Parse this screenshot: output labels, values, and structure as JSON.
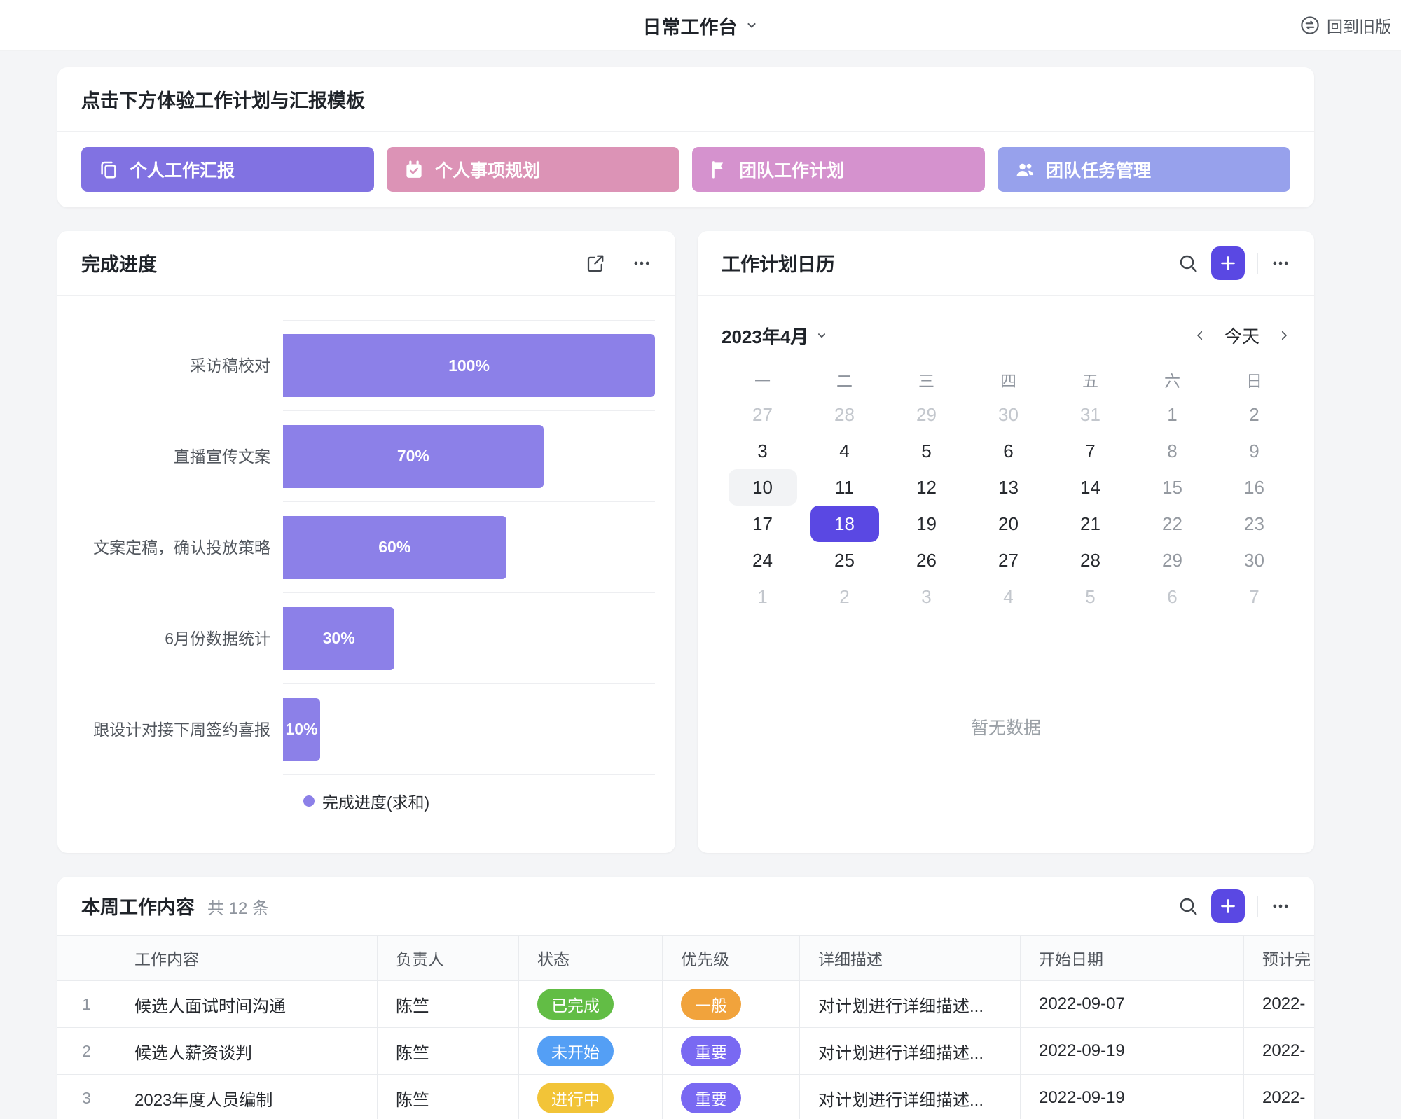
{
  "theme": {
    "accent": "#5a48e3"
  },
  "header": {
    "title": "日常工作台",
    "back_label": "回到旧版"
  },
  "templates": {
    "heading": "点击下方体验工作计划与汇报模板",
    "buttons": [
      {
        "label": "个人工作汇报",
        "color": "#8172e2",
        "icon": "copy-icon"
      },
      {
        "label": "个人事项规划",
        "color": "#dc93b6",
        "icon": "calendar-check-icon"
      },
      {
        "label": "团队工作计划",
        "color": "#d592ce",
        "icon": "flag-icon"
      },
      {
        "label": "团队任务管理",
        "color": "#97a1ec",
        "icon": "people-icon"
      }
    ]
  },
  "progress_card": {
    "title": "完成进度"
  },
  "chart_data": {
    "type": "bar",
    "orientation": "horizontal",
    "title": "完成进度",
    "categories": [
      "采访稿校对",
      "直播宣传文案",
      "文案定稿，确认投放策略",
      "6月份数据统计",
      "跟设计对接下周签约喜报"
    ],
    "values": [
      100,
      70,
      60,
      30,
      10
    ],
    "value_labels": [
      "100%",
      "70%",
      "60%",
      "30%",
      "10%"
    ],
    "xlim": [
      0,
      100
    ],
    "bar_color": "#8c80e8",
    "grid": "category-separators",
    "legend": [
      "完成进度(求和)"
    ],
    "legend_position": "bottom"
  },
  "calendar_card": {
    "title": "工作计划日历",
    "month_label": "2023年4月",
    "today_label": "今天",
    "weekdays": [
      "一",
      "二",
      "三",
      "四",
      "五",
      "六",
      "日"
    ],
    "empty_text": "暂无数据",
    "days": [
      {
        "d": "27",
        "k": "muted"
      },
      {
        "d": "28",
        "k": "muted"
      },
      {
        "d": "29",
        "k": "muted"
      },
      {
        "d": "30",
        "k": "muted"
      },
      {
        "d": "31",
        "k": "muted"
      },
      {
        "d": "1",
        "k": "weekend"
      },
      {
        "d": "2",
        "k": "weekend"
      },
      {
        "d": "3",
        "k": "normal"
      },
      {
        "d": "4",
        "k": "normal"
      },
      {
        "d": "5",
        "k": "normal"
      },
      {
        "d": "6",
        "k": "normal"
      },
      {
        "d": "7",
        "k": "normal"
      },
      {
        "d": "8",
        "k": "weekend"
      },
      {
        "d": "9",
        "k": "weekend"
      },
      {
        "d": "10",
        "k": "today"
      },
      {
        "d": "11",
        "k": "normal"
      },
      {
        "d": "12",
        "k": "normal"
      },
      {
        "d": "13",
        "k": "normal"
      },
      {
        "d": "14",
        "k": "normal"
      },
      {
        "d": "15",
        "k": "weekend"
      },
      {
        "d": "16",
        "k": "weekend"
      },
      {
        "d": "17",
        "k": "normal"
      },
      {
        "d": "18",
        "k": "selected"
      },
      {
        "d": "19",
        "k": "normal"
      },
      {
        "d": "20",
        "k": "normal"
      },
      {
        "d": "21",
        "k": "normal"
      },
      {
        "d": "22",
        "k": "weekend"
      },
      {
        "d": "23",
        "k": "weekend"
      },
      {
        "d": "24",
        "k": "normal"
      },
      {
        "d": "25",
        "k": "normal"
      },
      {
        "d": "26",
        "k": "normal"
      },
      {
        "d": "27",
        "k": "normal"
      },
      {
        "d": "28",
        "k": "normal"
      },
      {
        "d": "29",
        "k": "weekend"
      },
      {
        "d": "30",
        "k": "weekend"
      },
      {
        "d": "1",
        "k": "muted"
      },
      {
        "d": "2",
        "k": "muted"
      },
      {
        "d": "3",
        "k": "muted"
      },
      {
        "d": "4",
        "k": "muted"
      },
      {
        "d": "5",
        "k": "muted"
      },
      {
        "d": "6",
        "k": "muted"
      },
      {
        "d": "7",
        "k": "muted"
      }
    ]
  },
  "table_card": {
    "title": "本周工作内容",
    "count_text": "共 12 条",
    "columns": [
      "",
      "工作内容",
      "负责人",
      "状态",
      "优先级",
      "详细描述",
      "开始日期",
      "预计完"
    ],
    "rows": [
      {
        "index": "1",
        "task": "候选人面试时间沟通",
        "owner": "陈竺",
        "status": {
          "label": "已完成",
          "color": "#62bd45"
        },
        "priority": {
          "label": "一般",
          "color": "#f1a33c"
        },
        "desc": "对计划进行详细描述...",
        "start_date": "2022-09-07",
        "due_date": "2022-"
      },
      {
        "index": "2",
        "task": "候选人薪资谈判",
        "owner": "陈竺",
        "status": {
          "label": "未开始",
          "color": "#549ff5"
        },
        "priority": {
          "label": "重要",
          "color": "#7969f2"
        },
        "desc": "对计划进行详细描述...",
        "start_date": "2022-09-19",
        "due_date": "2022-"
      },
      {
        "index": "3",
        "task": "2023年度人员编制",
        "owner": "陈竺",
        "status": {
          "label": "进行中",
          "color": "#f2c438"
        },
        "priority": {
          "label": "重要",
          "color": "#7969f2"
        },
        "desc": "对计划进行详细描述...",
        "start_date": "2022-09-19",
        "due_date": "2022-"
      }
    ]
  }
}
